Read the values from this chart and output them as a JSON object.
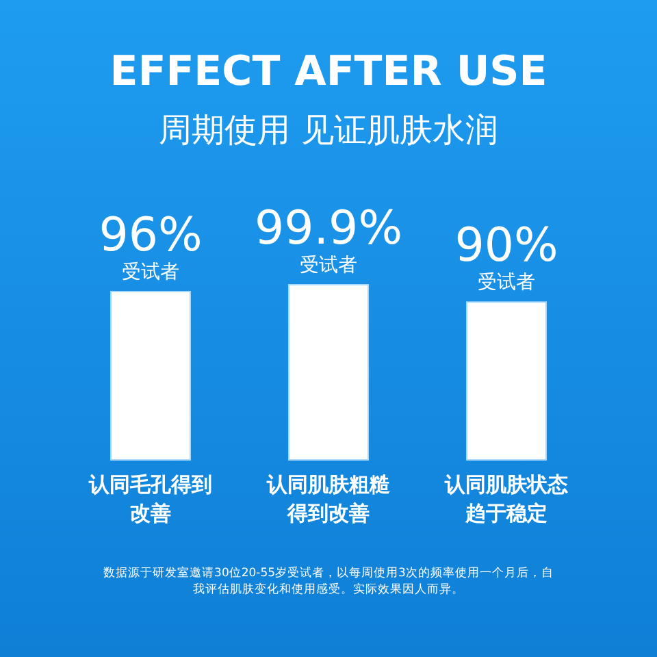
{
  "chart_data": {
    "type": "bar",
    "title": "EFFECT AFTER USE",
    "subtitle": "周期使用 见证肌肤水润",
    "categories": [
      "认同毛孔得到改善",
      "认同肌肤粗糙得到改善",
      "认同肌肤状态趋于稳定"
    ],
    "values": [
      96,
      99.9,
      90
    ],
    "value_labels": [
      "96%\n受试者",
      "99.9%\n受试者",
      "90%\n受试者"
    ],
    "color": "#ffffff",
    "annotations": [
      "数据源于研发室邀请30位20-55岁受试者，以每周使用3次的频率使用一个月后，自我评估肌肤变化和使用感受。实际效果因人而异。"
    ]
  }
}
